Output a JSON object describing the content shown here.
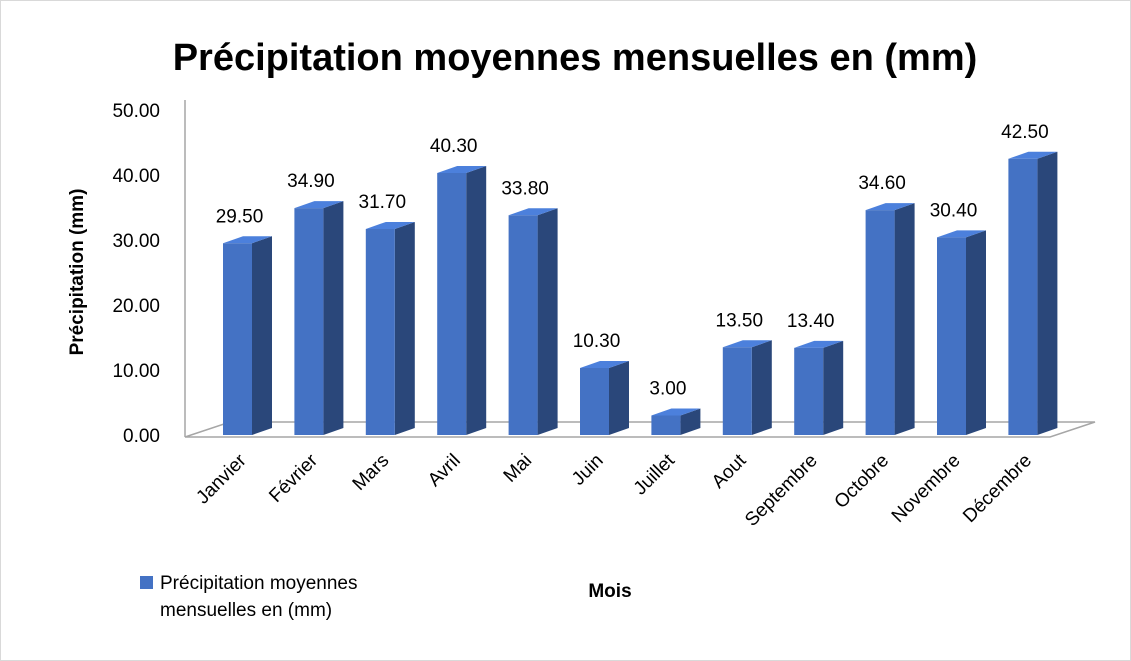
{
  "chart_data": {
    "type": "bar",
    "title": "Précipitation moyennes mensuelles en (mm)",
    "x_label": "Mois",
    "y_label": "Précipitation  (mm)",
    "categories": [
      "Janvier",
      "Février",
      "Mars",
      "Avril",
      "Mai",
      "Juin",
      "Juillet",
      "Aout",
      "Septembre",
      "Octobre",
      "Novembre",
      "Décembre"
    ],
    "series": [
      {
        "name": "Précipitation moyennes mensuelles en (mm)",
        "color": "#4472c4",
        "values": [
          29.5,
          34.9,
          31.7,
          40.3,
          33.8,
          10.3,
          3.0,
          13.5,
          13.4,
          34.6,
          30.4,
          42.5
        ],
        "value_labels": [
          "29.50",
          "34.90",
          "31.70",
          "40.30",
          "33.80",
          "10.30",
          "3.00",
          "13.50",
          "13.40",
          "34.60",
          "30.40",
          "42.50"
        ]
      }
    ],
    "ylim": [
      0,
      50
    ],
    "yticks": [
      {
        "value": 0,
        "label": "0.00"
      },
      {
        "value": 10,
        "label": "10.00"
      },
      {
        "value": 20,
        "label": "20.00"
      },
      {
        "value": 30,
        "label": "30.00"
      },
      {
        "value": 40,
        "label": "40.00"
      },
      {
        "value": 50,
        "label": "50.00"
      }
    ],
    "legend": "bottom-left"
  }
}
